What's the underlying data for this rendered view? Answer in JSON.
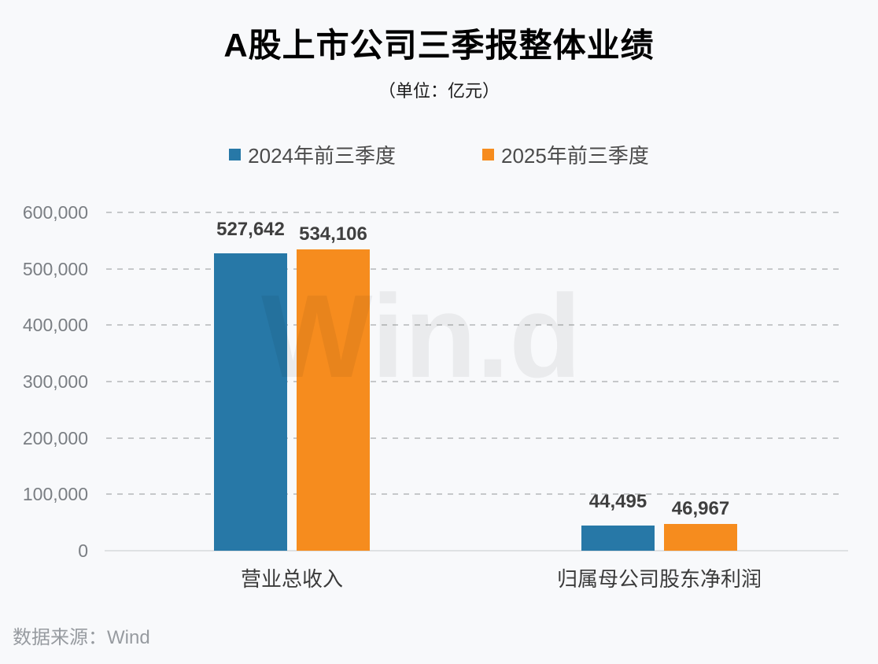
{
  "title": "A股上市公司三季报整体业绩",
  "subtitle": "（单位：亿元）",
  "watermark": "Win.d",
  "source": "数据来源：Wind",
  "colors": {
    "series_2024": "#2778A7",
    "series_2025": "#F68C1E",
    "background": "#F8F9FB",
    "gridline": "#C6C8CA",
    "value_label": "#3F3F3F",
    "tick_label": "#7A7E83"
  },
  "chart_data": {
    "type": "bar",
    "categories": [
      "营业总收入",
      "归属母公司股东净利润"
    ],
    "series": [
      {
        "name": "2024年前三季度",
        "color": "#2778A7",
        "values": [
          527642,
          44495
        ]
      },
      {
        "name": "2025年前三季度",
        "color": "#F68C1E",
        "values": [
          534106,
          46967
        ]
      }
    ],
    "value_labels": [
      [
        "527,642",
        "44,495"
      ],
      [
        "534,106",
        "46,967"
      ]
    ],
    "ylabel": "",
    "xlabel": "",
    "ylim": [
      0,
      600000
    ],
    "ytick_interval": 100000,
    "ytick_labels": [
      "0",
      "100,000",
      "200,000",
      "300,000",
      "400,000",
      "500,000",
      "600,000"
    ],
    "grid": "dashed-horizontal",
    "legend_position": "top"
  }
}
